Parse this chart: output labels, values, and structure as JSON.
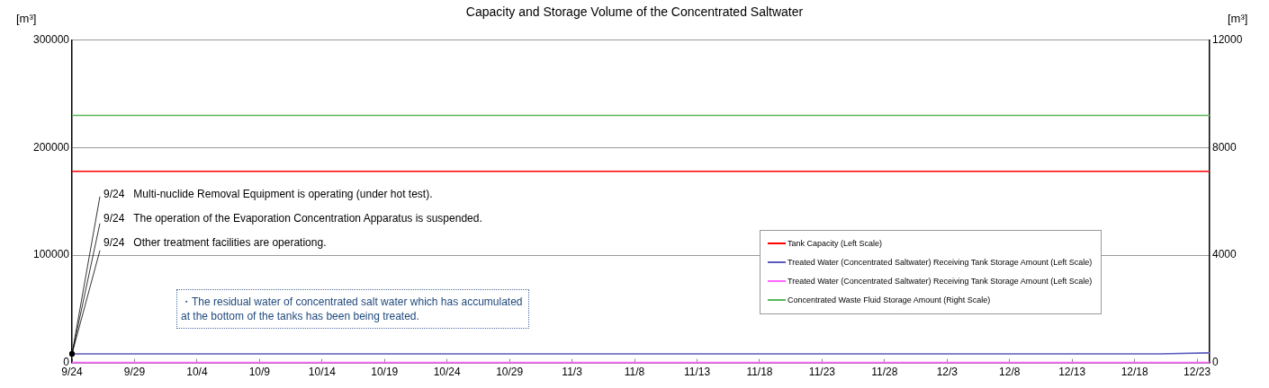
{
  "chart_data": {
    "type": "line",
    "title": "Capacity and Storage Volume of the Concentrated Saltwater",
    "ylabel": "[m³]",
    "y2label": "[m³]",
    "xlim": [
      "--09-24",
      "--12-24"
    ],
    "xticks": [
      {
        "value": "--09-24",
        "label": "9/24"
      },
      {
        "value": "--09-29",
        "label": "9/29"
      },
      {
        "value": "--10-04",
        "label": "10/4"
      },
      {
        "value": "--10-09",
        "label": "10/9"
      },
      {
        "value": "--10-14",
        "label": "10/14"
      },
      {
        "value": "--10-19",
        "label": "10/19"
      },
      {
        "value": "--10-24",
        "label": "10/24"
      },
      {
        "value": "--10-29",
        "label": "10/29"
      },
      {
        "value": "--11-03",
        "label": "11/3"
      },
      {
        "value": "--11-08",
        "label": "11/8"
      },
      {
        "value": "--11-13",
        "label": "11/13"
      },
      {
        "value": "--11-18",
        "label": "11/18"
      },
      {
        "value": "--11-23",
        "label": "11/23"
      },
      {
        "value": "--11-28",
        "label": "11/28"
      },
      {
        "value": "--12-03",
        "label": "12/3"
      },
      {
        "value": "--12-08",
        "label": "12/8"
      },
      {
        "value": "--12-13",
        "label": "12/13"
      },
      {
        "value": "--12-18",
        "label": "12/18"
      },
      {
        "value": "--12-23",
        "label": "12/23"
      }
    ],
    "ylim": [
      0,
      300000
    ],
    "yticks": [
      0,
      100000,
      200000,
      300000
    ],
    "y2lim": [
      0,
      12000
    ],
    "y2ticks": [
      0,
      4000,
      8000,
      12000
    ],
    "grid": "y",
    "legend": "right",
    "marker": "none",
    "line_style": "solid",
    "series": [
      {
        "name": "Tank Capacity (Left Scale)",
        "color": "#ff0000",
        "x": [
          "--09-24",
          "--12-24"
        ],
        "values": [
          178000,
          178000
        ]
      },
      {
        "name": "Treated Water (Concentrated Saltwater) Receiving Tank Storage Amount (Left Scale)",
        "color": "#5b5bbf",
        "x": [
          "--09-24",
          "--12-20",
          "--12-24"
        ],
        "values": [
          8000,
          8000,
          9000
        ]
      },
      {
        "name": "Treated Water (Concentrated Saltwater) Receiving Tank Storage Amount (Left Scale)",
        "color": "#ff66ff",
        "x": [
          "--09-24",
          "--12-24"
        ],
        "values": [
          0,
          0
        ]
      },
      {
        "name": "Concentrated Waste Fluid Storage Amount (Right Scale)",
        "color": "#5cb85c",
        "axis": "y2",
        "x": [
          "--09-24",
          "--12-24"
        ],
        "values": [
          9200,
          9200
        ]
      }
    ],
    "annotations": [
      {
        "text": "9/24   Multi-nuclide Removal Equipment is operating (under hot test).",
        "x": "--09-24",
        "y": 8000
      },
      {
        "text": "9/24   The operation of the Evaporation Concentration Apparatus is suspended.",
        "x": "--09-24",
        "y": 8000
      },
      {
        "text": "9/24   Other treatment facilities are operationg.",
        "x": "--09-24",
        "y": 8000
      },
      "・The residual water of concentrated salt water which has accumulated at the bottom of the tanks has been being treated."
    ]
  }
}
